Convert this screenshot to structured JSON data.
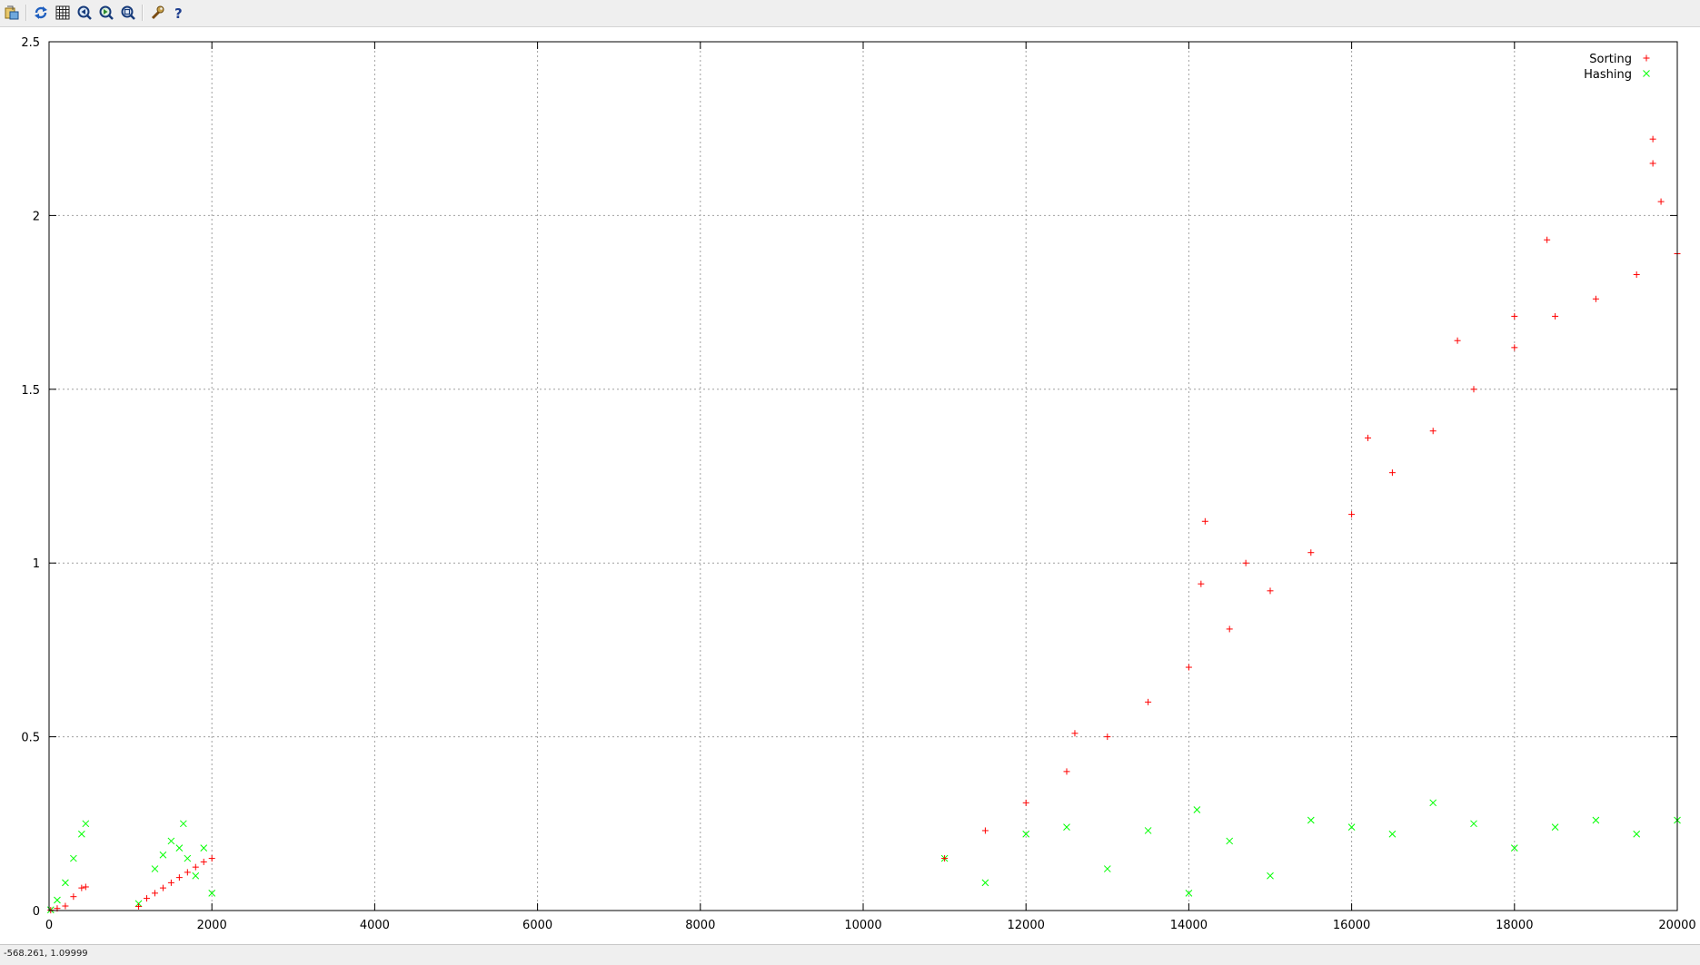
{
  "toolbar": {
    "items": [
      {
        "name": "export-icon"
      },
      {
        "name": "replot-icon"
      },
      {
        "name": "grid-icon"
      },
      {
        "name": "zoom-previous-icon"
      },
      {
        "name": "zoom-next-icon"
      },
      {
        "name": "autoscale-icon"
      },
      {
        "name": "options-wrench-icon"
      },
      {
        "name": "help-icon"
      }
    ]
  },
  "status": {
    "coordinates": "-568.261,  1.09999"
  },
  "colors": {
    "sorting": "#ff0000",
    "hashing": "#00ff00",
    "grid": "#a0a0a0"
  },
  "chart_data": {
    "type": "scatter",
    "title": "",
    "xlabel": "",
    "ylabel": "",
    "xlim": [
      0,
      20000
    ],
    "ylim": [
      0,
      2.5
    ],
    "grid": true,
    "legend_position": "top-right",
    "x_ticks": [
      "0",
      "2000",
      "4000",
      "6000",
      "8000",
      "10000",
      "12000",
      "14000",
      "16000",
      "18000",
      "20000"
    ],
    "y_ticks": [
      "0",
      "0.5",
      "1",
      "1.5",
      "2",
      "2.5"
    ],
    "series": [
      {
        "name": "Sorting",
        "marker": "+",
        "color": "#ff0000",
        "points": [
          [
            20,
            0.001
          ],
          [
            100,
            0.006
          ],
          [
            200,
            0.013
          ],
          [
            300,
            0.04
          ],
          [
            400,
            0.065
          ],
          [
            450,
            0.068
          ],
          [
            1100,
            0.012
          ],
          [
            1200,
            0.035
          ],
          [
            1300,
            0.05
          ],
          [
            1400,
            0.065
          ],
          [
            1500,
            0.08
          ],
          [
            1600,
            0.095
          ],
          [
            1700,
            0.11
          ],
          [
            1800,
            0.125
          ],
          [
            1900,
            0.14
          ],
          [
            2000,
            0.15
          ],
          [
            11000,
            0.15
          ],
          [
            11500,
            0.23
          ],
          [
            12000,
            0.31
          ],
          [
            12500,
            0.4
          ],
          [
            13000,
            0.5
          ],
          [
            13500,
            0.6
          ],
          [
            14000,
            0.7
          ],
          [
            14500,
            0.81
          ],
          [
            15000,
            0.92
          ],
          [
            15500,
            1.03
          ],
          [
            16000,
            1.14
          ],
          [
            16500,
            1.26
          ],
          [
            17000,
            1.38
          ],
          [
            17500,
            1.5
          ],
          [
            18000,
            1.62
          ],
          [
            18500,
            1.71
          ],
          [
            19000,
            1.76
          ],
          [
            19500,
            1.83
          ],
          [
            20000,
            1.89
          ],
          [
            14200,
            1.12
          ],
          [
            14150,
            0.94
          ],
          [
            14700,
            1.0
          ],
          [
            17300,
            1.64
          ],
          [
            18400,
            1.93
          ],
          [
            19700,
            2.22
          ],
          [
            19700,
            2.15
          ],
          [
            19800,
            2.04
          ],
          [
            16200,
            1.36
          ],
          [
            18000,
            1.71
          ],
          [
            12600,
            0.51
          ]
        ]
      },
      {
        "name": "Hashing",
        "marker": "x",
        "color": "#00ff00",
        "points": [
          [
            20,
            0.002
          ],
          [
            100,
            0.03
          ],
          [
            200,
            0.08
          ],
          [
            300,
            0.15
          ],
          [
            400,
            0.22
          ],
          [
            450,
            0.25
          ],
          [
            1100,
            0.02
          ],
          [
            1300,
            0.12
          ],
          [
            1400,
            0.16
          ],
          [
            1500,
            0.2
          ],
          [
            1600,
            0.18
          ],
          [
            1650,
            0.25
          ],
          [
            1700,
            0.15
          ],
          [
            1800,
            0.1
          ],
          [
            1900,
            0.18
          ],
          [
            2000,
            0.05
          ],
          [
            11000,
            0.15
          ],
          [
            11500,
            0.08
          ],
          [
            12000,
            0.22
          ],
          [
            12500,
            0.24
          ],
          [
            13000,
            0.12
          ],
          [
            13500,
            0.23
          ],
          [
            14000,
            0.05
          ],
          [
            14100,
            0.29
          ],
          [
            14500,
            0.2
          ],
          [
            15000,
            0.1
          ],
          [
            15500,
            0.26
          ],
          [
            16000,
            0.24
          ],
          [
            16500,
            0.22
          ],
          [
            17000,
            0.31
          ],
          [
            17500,
            0.25
          ],
          [
            18000,
            0.18
          ],
          [
            18500,
            0.24
          ],
          [
            19000,
            0.26
          ],
          [
            19500,
            0.22
          ],
          [
            20000,
            0.26
          ]
        ]
      }
    ]
  }
}
